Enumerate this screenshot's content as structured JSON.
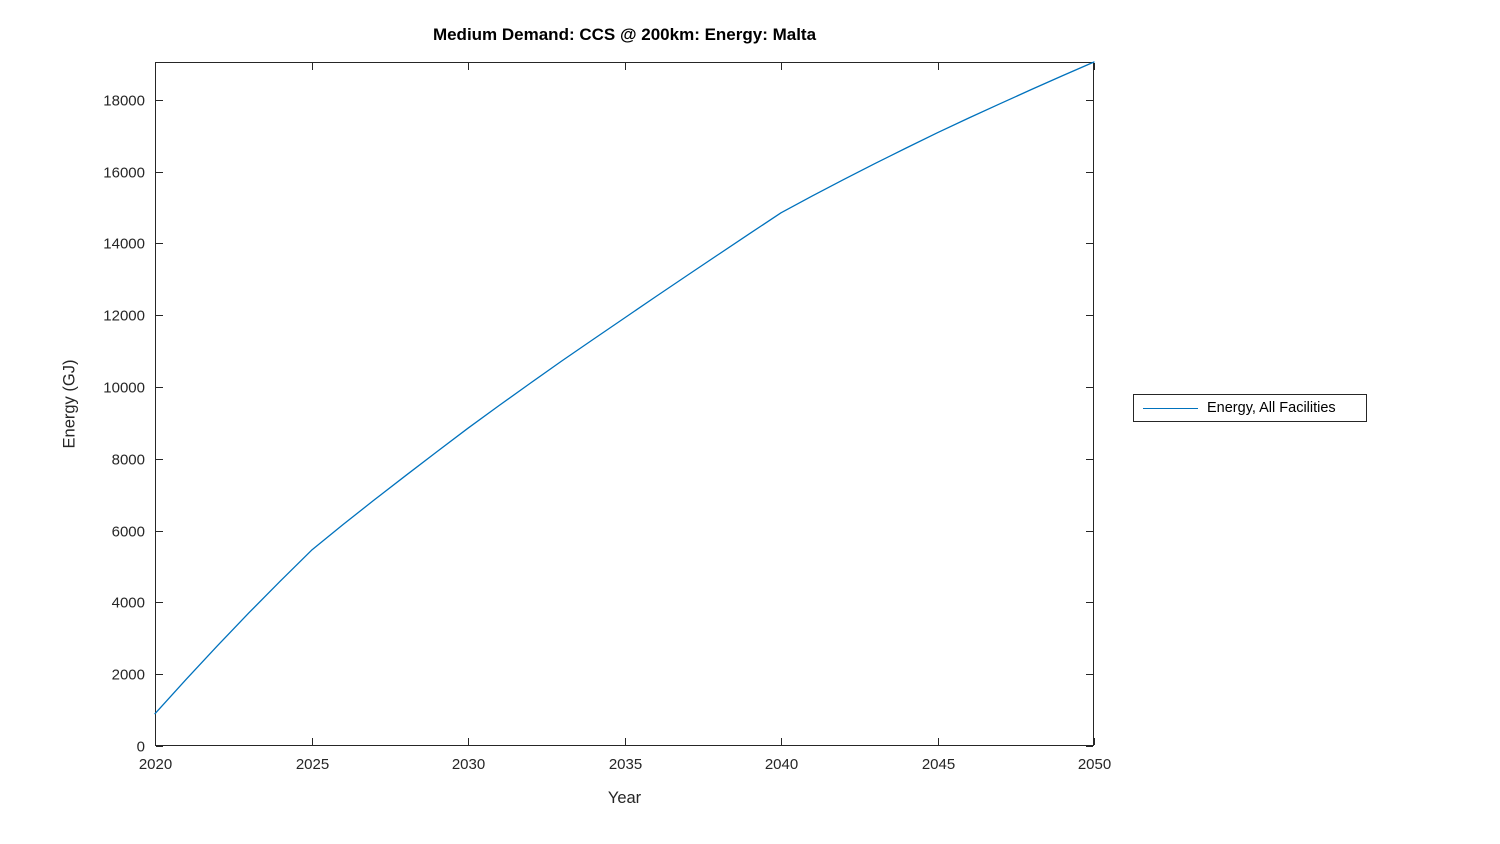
{
  "figure": {
    "background": "#ffffff"
  },
  "chart_data": {
    "type": "line",
    "title": "Medium Demand: CCS @ 200km: Energy: Malta",
    "xlabel": "Year",
    "ylabel": "Energy (GJ)",
    "xlim": [
      2020,
      2050
    ],
    "ylim": [
      0,
      19050
    ],
    "x_ticks": [
      2020,
      2025,
      2030,
      2035,
      2040,
      2045,
      2050
    ],
    "y_ticks": [
      0,
      2000,
      4000,
      6000,
      8000,
      10000,
      12000,
      14000,
      16000,
      18000
    ],
    "grid": false,
    "line_color": "#0072BD",
    "axis_color": "#262626",
    "legend": {
      "position": "right-outside",
      "entries": [
        "Energy, All Facilities"
      ]
    },
    "x": [
      2020,
      2021,
      2022,
      2023,
      2024,
      2025,
      2026,
      2027,
      2028,
      2029,
      2030,
      2031,
      2032,
      2033,
      2034,
      2035,
      2036,
      2037,
      2038,
      2039,
      2040,
      2041,
      2042,
      2043,
      2044,
      2045,
      2046,
      2047,
      2048,
      2049,
      2050
    ],
    "series": [
      {
        "name": "Energy, All Facilities",
        "values": [
          900,
          1860,
          2795,
          3710,
          4590,
          5450,
          6160,
          6850,
          7525,
          8190,
          8850,
          9485,
          10110,
          10725,
          11325,
          11920,
          12515,
          13105,
          13690,
          14272,
          14850,
          15320,
          15775,
          16220,
          16655,
          17080,
          17490,
          17890,
          18285,
          18670,
          19050
        ]
      }
    ]
  }
}
